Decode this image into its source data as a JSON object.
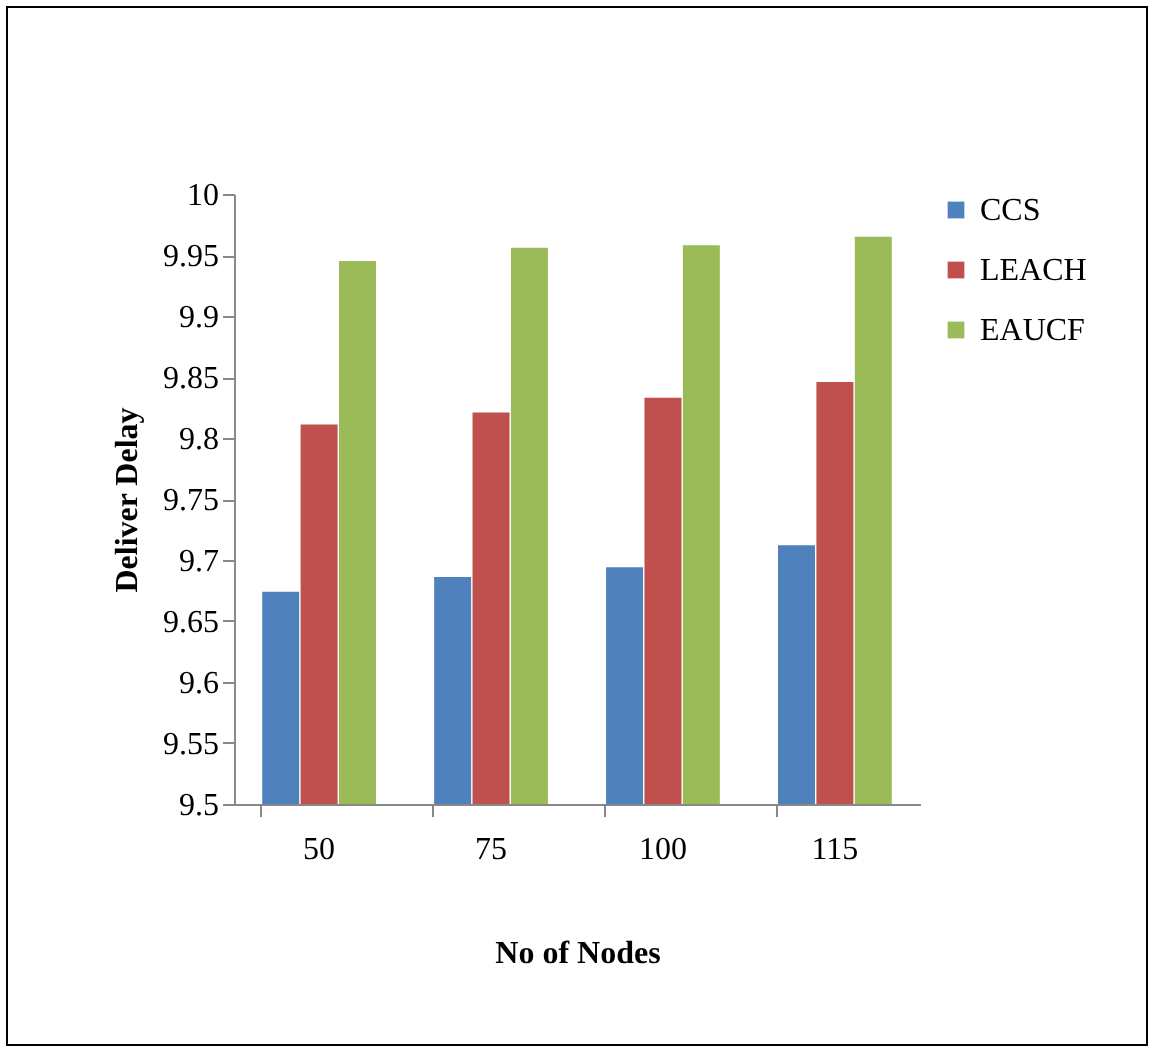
{
  "chart_data": {
    "type": "bar",
    "xlabel": "No of Nodes",
    "ylabel": "Deliver Delay",
    "categories": [
      "50",
      "75",
      "100",
      "115"
    ],
    "series": [
      {
        "name": "CCS",
        "color": "#4f81bd",
        "values": [
          9.674,
          9.686,
          9.694,
          9.712
        ]
      },
      {
        "name": "LEACH",
        "color": "#c0504d",
        "values": [
          9.811,
          9.821,
          9.833,
          9.846
        ]
      },
      {
        "name": "EAUCF",
        "color": "#9bbb59",
        "values": [
          9.945,
          9.956,
          9.958,
          9.965
        ]
      }
    ],
    "ylim": [
      9.5,
      10
    ],
    "yticks": [
      9.5,
      9.55,
      9.6,
      9.65,
      9.7,
      9.75,
      9.8,
      9.85,
      9.9,
      9.95,
      10
    ],
    "grid": false,
    "legend": "right"
  }
}
